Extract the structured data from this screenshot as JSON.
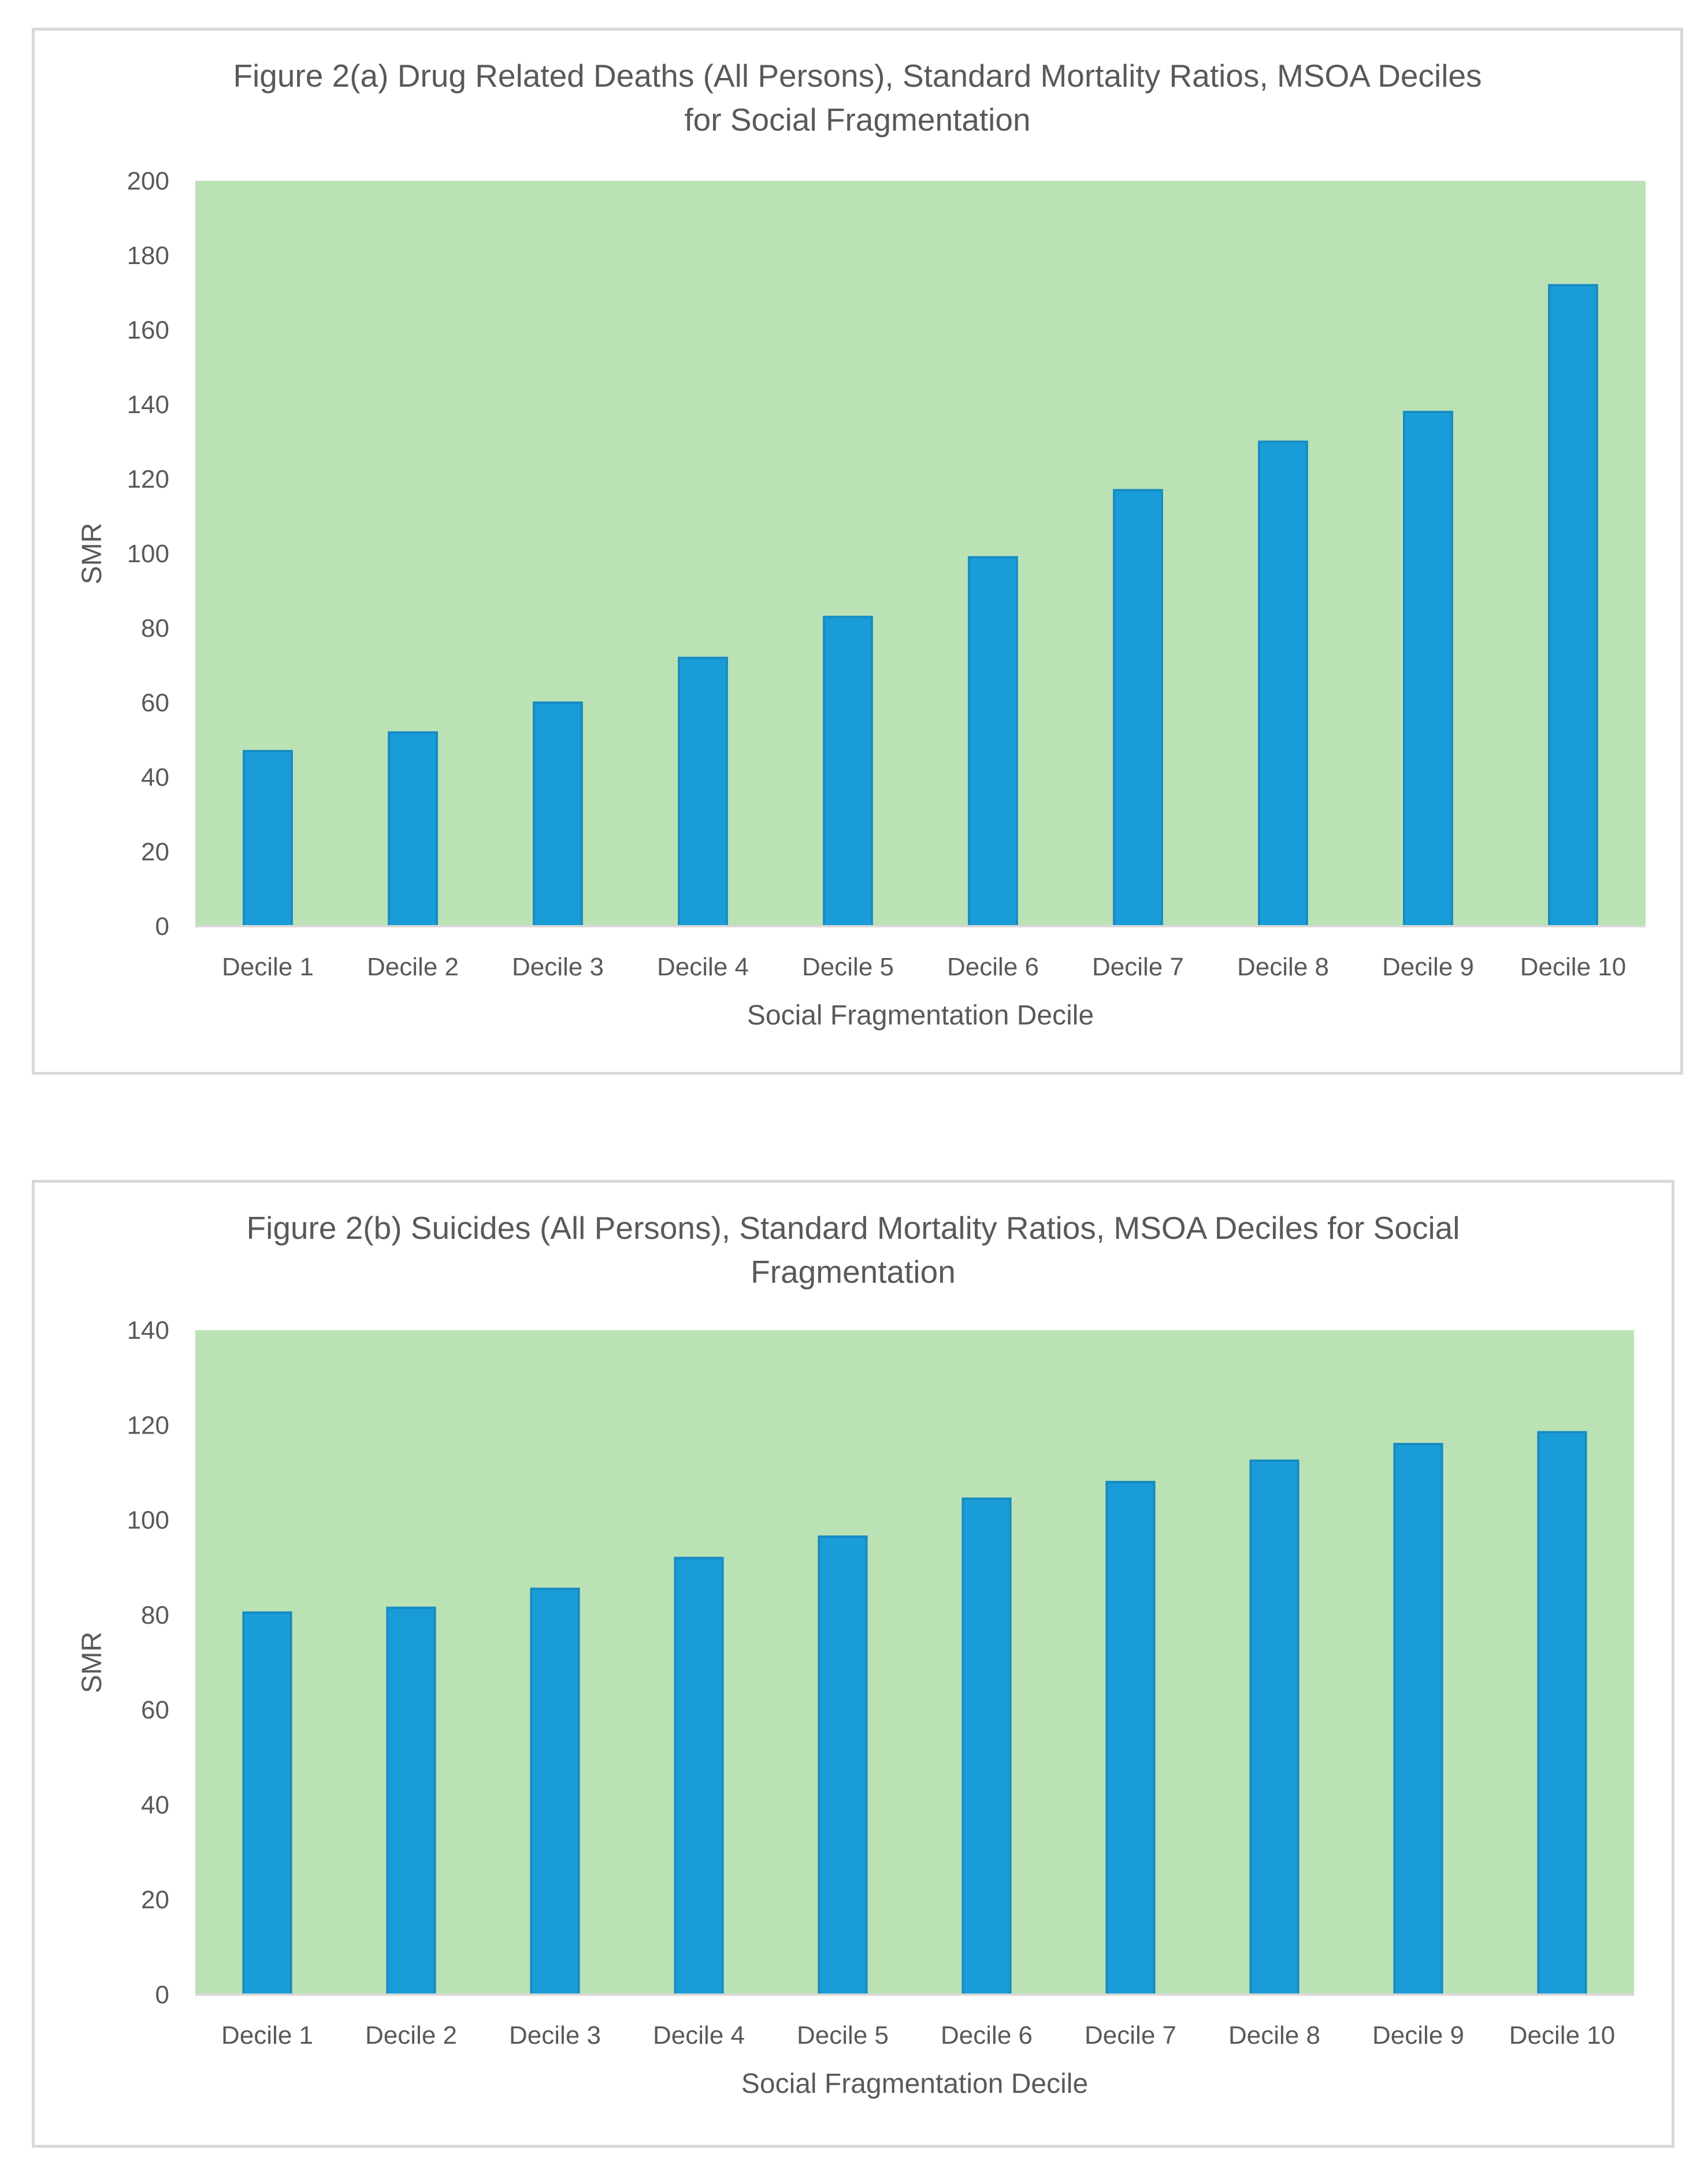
{
  "chart_data": [
    {
      "type": "bar",
      "title_line1": "Figure 2(a) Drug Related Deaths (All Persons), Standard Mortality Ratios, MSOA Deciles",
      "title_line2": "for Social Fragmentation",
      "xlabel": "Social Fragmentation Decile",
      "ylabel": "SMR",
      "ylim": [
        0,
        200
      ],
      "yticks": [
        0,
        20,
        40,
        60,
        80,
        100,
        120,
        140,
        160,
        180,
        200
      ],
      "categories": [
        "Decile 1",
        "Decile 2",
        "Decile 3",
        "Decile 4",
        "Decile 5",
        "Decile 6",
        "Decile 7",
        "Decile 8",
        "Decile 9",
        "Decile 10"
      ],
      "values": [
        47,
        52,
        60,
        72,
        83,
        99,
        117,
        130,
        138,
        172
      ],
      "grid": false,
      "legend": "none",
      "colors": {
        "bar": "#1a9cd8",
        "bar_edge": "#178bc2",
        "plot_bg": "#bbe2b5",
        "axis_line": "#d9d9d9"
      }
    },
    {
      "type": "bar",
      "title_line1": "Figure 2(b) Suicides (All Persons), Standard Mortality Ratios, MSOA Deciles for Social",
      "title_line2": "Fragmentation",
      "xlabel": "Social Fragmentation Decile",
      "ylabel": "SMR",
      "ylim": [
        0,
        140
      ],
      "yticks": [
        0,
        20,
        40,
        60,
        80,
        100,
        120,
        140
      ],
      "categories": [
        "Decile 1",
        "Decile 2",
        "Decile 3",
        "Decile 4",
        "Decile 5",
        "Decile 6",
        "Decile 7",
        "Decile 8",
        "Decile 9",
        "Decile 10"
      ],
      "values": [
        80.5,
        81.5,
        85.5,
        92,
        96.5,
        104.5,
        108,
        112.5,
        116,
        118.5
      ],
      "grid": false,
      "legend": "none",
      "colors": {
        "bar": "#1a9cd8",
        "bar_edge": "#178bc2",
        "plot_bg": "#bbe2b5",
        "axis_line": "#d9d9d9"
      }
    }
  ]
}
